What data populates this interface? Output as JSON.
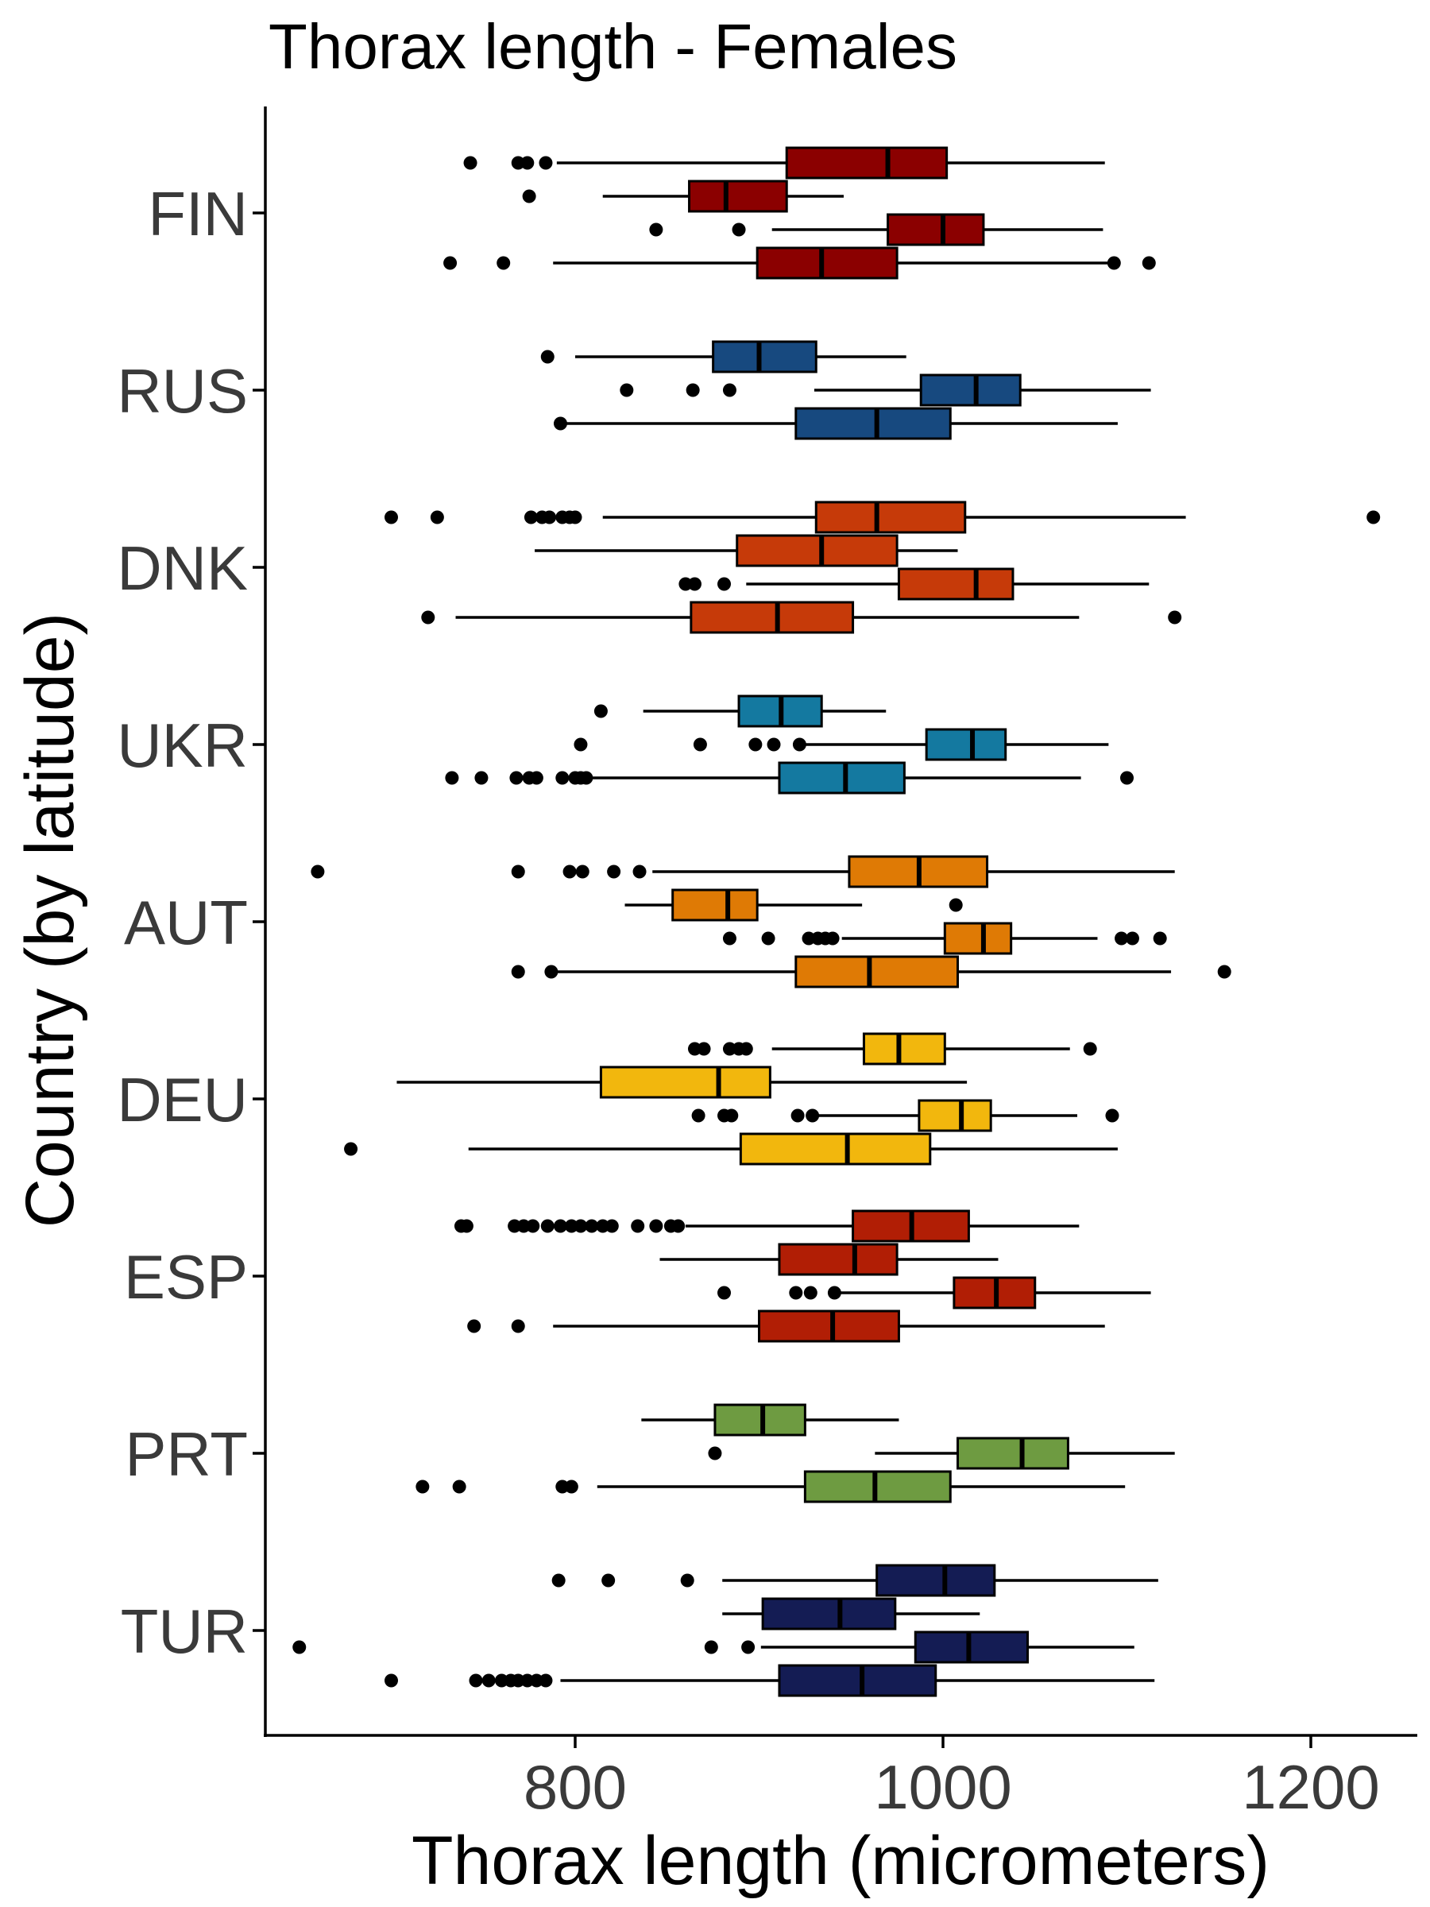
{
  "chart_data": {
    "type": "boxplot",
    "title": "Thorax length - Females",
    "xlabel": "Thorax length (micrometers)",
    "ylabel": "Country (by latitude)",
    "xlim": [
      620,
      1260
    ],
    "xticks": [
      800,
      1000,
      1200
    ],
    "grid": false,
    "legend": "none",
    "countries": [
      {
        "name": "FIN",
        "color": "#8b0000",
        "boxes": [
          {
            "q1": 915,
            "median": 970,
            "q3": 1002,
            "whisker_low": 790,
            "whisker_high": 1088,
            "outliers": [
              743,
              769,
              774,
              784
            ]
          },
          {
            "q1": 862,
            "median": 882,
            "q3": 915,
            "whisker_low": 815,
            "whisker_high": 946,
            "outliers": [
              775
            ]
          },
          {
            "q1": 970,
            "median": 1000,
            "q3": 1022,
            "whisker_low": 907,
            "whisker_high": 1087,
            "outliers": [
              844,
              889
            ]
          },
          {
            "q1": 899,
            "median": 934,
            "q3": 975,
            "whisker_low": 788,
            "whisker_high": 1093,
            "outliers": [
              732,
              761,
              1093,
              1112
            ]
          }
        ]
      },
      {
        "name": "RUS",
        "color": "#17497f",
        "boxes": [
          {
            "q1": 875,
            "median": 900,
            "q3": 931,
            "whisker_low": 800,
            "whisker_high": 980,
            "outliers": [
              785
            ]
          },
          {
            "q1": 988,
            "median": 1018,
            "q3": 1042,
            "whisker_low": 930,
            "whisker_high": 1113,
            "outliers": [
              828,
              864,
              884
            ]
          },
          {
            "q1": 920,
            "median": 964,
            "q3": 1004,
            "whisker_low": 792,
            "whisker_high": 1095,
            "outliers": [
              792
            ]
          }
        ]
      },
      {
        "name": "DNK",
        "color": "#c63a09",
        "boxes": [
          {
            "q1": 931,
            "median": 964,
            "q3": 1012,
            "whisker_low": 815,
            "whisker_high": 1132,
            "outliers": [
              700,
              725,
              776,
              782,
              786,
              793,
              797,
              800,
              1234
            ]
          },
          {
            "q1": 888,
            "median": 934,
            "q3": 975,
            "whisker_low": 778,
            "whisker_high": 1008,
            "outliers": []
          },
          {
            "q1": 976,
            "median": 1018,
            "q3": 1038,
            "whisker_low": 893,
            "whisker_high": 1112,
            "outliers": [
              860,
              865,
              881
            ]
          },
          {
            "q1": 863,
            "median": 910,
            "q3": 951,
            "whisker_low": 735,
            "whisker_high": 1074,
            "outliers": [
              720,
              1126
            ]
          }
        ]
      },
      {
        "name": "UKR",
        "color": "#1479a0",
        "boxes": [
          {
            "q1": 889,
            "median": 912,
            "q3": 934,
            "whisker_low": 837,
            "whisker_high": 969,
            "outliers": [
              814
            ]
          },
          {
            "q1": 991,
            "median": 1016,
            "q3": 1034,
            "whisker_low": 922,
            "whisker_high": 1090,
            "outliers": [
              803,
              868,
              898,
              908,
              922
            ]
          },
          {
            "q1": 911,
            "median": 947,
            "q3": 979,
            "whisker_low": 808,
            "whisker_high": 1075,
            "outliers": [
              733,
              749,
              768,
              775,
              779,
              793,
              800,
              803,
              806,
              1100
            ]
          }
        ]
      },
      {
        "name": "AUT",
        "color": "#df7a05",
        "boxes": [
          {
            "q1": 949,
            "median": 987,
            "q3": 1024,
            "whisker_low": 842,
            "whisker_high": 1126,
            "outliers": [
              660,
              769,
              797,
              804,
              821,
              835
            ]
          },
          {
            "q1": 853,
            "median": 883,
            "q3": 899,
            "whisker_low": 827,
            "whisker_high": 956,
            "outliers": [
              1007
            ]
          },
          {
            "q1": 1001,
            "median": 1022,
            "q3": 1037,
            "whisker_low": 945,
            "whisker_high": 1084,
            "outliers": [
              884,
              905,
              927,
              932,
              936,
              940,
              1097,
              1103,
              1118
            ]
          },
          {
            "q1": 920,
            "median": 960,
            "q3": 1008,
            "whisker_low": 788,
            "whisker_high": 1124,
            "outliers": [
              769,
              787,
              1153
            ]
          }
        ]
      },
      {
        "name": "DEU",
        "color": "#f2b70d",
        "boxes": [
          {
            "q1": 957,
            "median": 976,
            "q3": 1001,
            "whisker_low": 907,
            "whisker_high": 1069,
            "outliers": [
              865,
              870,
              884,
              889,
              893,
              1080
            ]
          },
          {
            "q1": 814,
            "median": 878,
            "q3": 906,
            "whisker_low": 703,
            "whisker_high": 1013,
            "outliers": []
          },
          {
            "q1": 987,
            "median": 1010,
            "q3": 1026,
            "whisker_low": 929,
            "whisker_high": 1073,
            "outliers": [
              867,
              881,
              885,
              921,
              929,
              1092
            ]
          },
          {
            "q1": 890,
            "median": 948,
            "q3": 993,
            "whisker_low": 742,
            "whisker_high": 1095,
            "outliers": [
              678
            ]
          }
        ]
      },
      {
        "name": "ESP",
        "color": "#b11e05",
        "boxes": [
          {
            "q1": 951,
            "median": 983,
            "q3": 1014,
            "whisker_low": 860,
            "whisker_high": 1074,
            "outliers": [
              738,
              741,
              767,
              772,
              777,
              785,
              792,
              798,
              803,
              809,
              815,
              820,
              834,
              844,
              852,
              856
            ]
          },
          {
            "q1": 911,
            "median": 952,
            "q3": 975,
            "whisker_low": 846,
            "whisker_high": 1030,
            "outliers": []
          },
          {
            "q1": 1006,
            "median": 1029,
            "q3": 1050,
            "whisker_low": 940,
            "whisker_high": 1113,
            "outliers": [
              881,
              920,
              928,
              941
            ]
          },
          {
            "q1": 900,
            "median": 940,
            "q3": 976,
            "whisker_low": 788,
            "whisker_high": 1088,
            "outliers": [
              745,
              769
            ]
          }
        ]
      },
      {
        "name": "PRT",
        "color": "#6e9b41",
        "boxes": [
          {
            "q1": 876,
            "median": 902,
            "q3": 925,
            "whisker_low": 836,
            "whisker_high": 976,
            "outliers": []
          },
          {
            "q1": 1008,
            "median": 1043,
            "q3": 1068,
            "whisker_low": 963,
            "whisker_high": 1126,
            "outliers": [
              876
            ]
          },
          {
            "q1": 925,
            "median": 963,
            "q3": 1004,
            "whisker_low": 812,
            "whisker_high": 1099,
            "outliers": [
              717,
              737,
              793,
              798
            ]
          }
        ]
      },
      {
        "name": "TUR",
        "color": "#141c54",
        "boxes": [
          {
            "q1": 964,
            "median": 1001,
            "q3": 1028,
            "whisker_low": 880,
            "whisker_high": 1117,
            "outliers": [
              791,
              818,
              861
            ]
          },
          {
            "q1": 902,
            "median": 944,
            "q3": 974,
            "whisker_low": 880,
            "whisker_high": 1020,
            "outliers": []
          },
          {
            "q1": 985,
            "median": 1014,
            "q3": 1046,
            "whisker_low": 901,
            "whisker_high": 1104,
            "outliers": [
              650,
              874,
              894
            ]
          },
          {
            "q1": 911,
            "median": 956,
            "q3": 996,
            "whisker_low": 792,
            "whisker_high": 1115,
            "outliers": [
              700,
              746,
              753,
              760,
              765,
              769,
              774,
              779,
              784
            ]
          }
        ]
      }
    ]
  }
}
